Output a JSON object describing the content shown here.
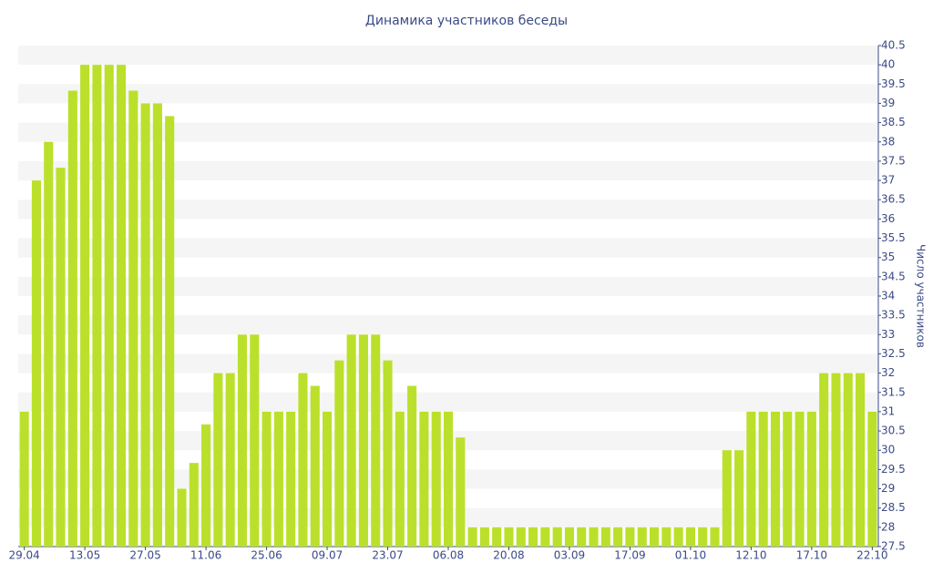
{
  "chart_data": {
    "type": "bar",
    "title": "Динамика участников беседы",
    "y_axis_label": "Число участников",
    "categories": [
      "29.04",
      null,
      null,
      null,
      null,
      "13.05",
      null,
      null,
      null,
      null,
      "27.05",
      null,
      null,
      null,
      null,
      "11.06",
      null,
      null,
      null,
      null,
      "25.06",
      null,
      null,
      null,
      null,
      "09.07",
      null,
      null,
      null,
      null,
      "23.07",
      null,
      null,
      null,
      null,
      "06.08",
      null,
      null,
      null,
      null,
      "20.08",
      null,
      null,
      null,
      null,
      "03.09",
      null,
      null,
      null,
      null,
      "17.09",
      null,
      null,
      null,
      null,
      "01.10",
      null,
      null,
      null,
      null,
      "12.10",
      null,
      null,
      null,
      null,
      "17.10",
      null,
      null,
      null,
      null,
      "22.10"
    ],
    "values": [
      31,
      37,
      38,
      37.33,
      39.33,
      40,
      40,
      40,
      40,
      39.33,
      39,
      39,
      38.67,
      29,
      29.67,
      30.67,
      32,
      32,
      33,
      33,
      31,
      31,
      31,
      32,
      31.67,
      31,
      32.33,
      33,
      33,
      33,
      32.33,
      31,
      31.67,
      31,
      31,
      31,
      30.33,
      28,
      28,
      28,
      28,
      28,
      28,
      28,
      28,
      28,
      28,
      28,
      28,
      28,
      28,
      28,
      28,
      28,
      28,
      28,
      28,
      28,
      30,
      30,
      31,
      31,
      31,
      31,
      31,
      31,
      32,
      32,
      32,
      32,
      31
    ],
    "color": "#bbe02b",
    "ylim": [
      27.5,
      40.5
    ],
    "yticks": [
      27.5,
      28,
      28.5,
      29,
      29.5,
      30,
      30.5,
      31,
      31.5,
      32,
      32.5,
      33,
      33.5,
      34,
      34.5,
      35,
      35.5,
      36,
      36.5,
      37,
      37.5,
      38,
      38.5,
      39,
      39.5,
      40,
      40.5
    ],
    "grid": true
  }
}
